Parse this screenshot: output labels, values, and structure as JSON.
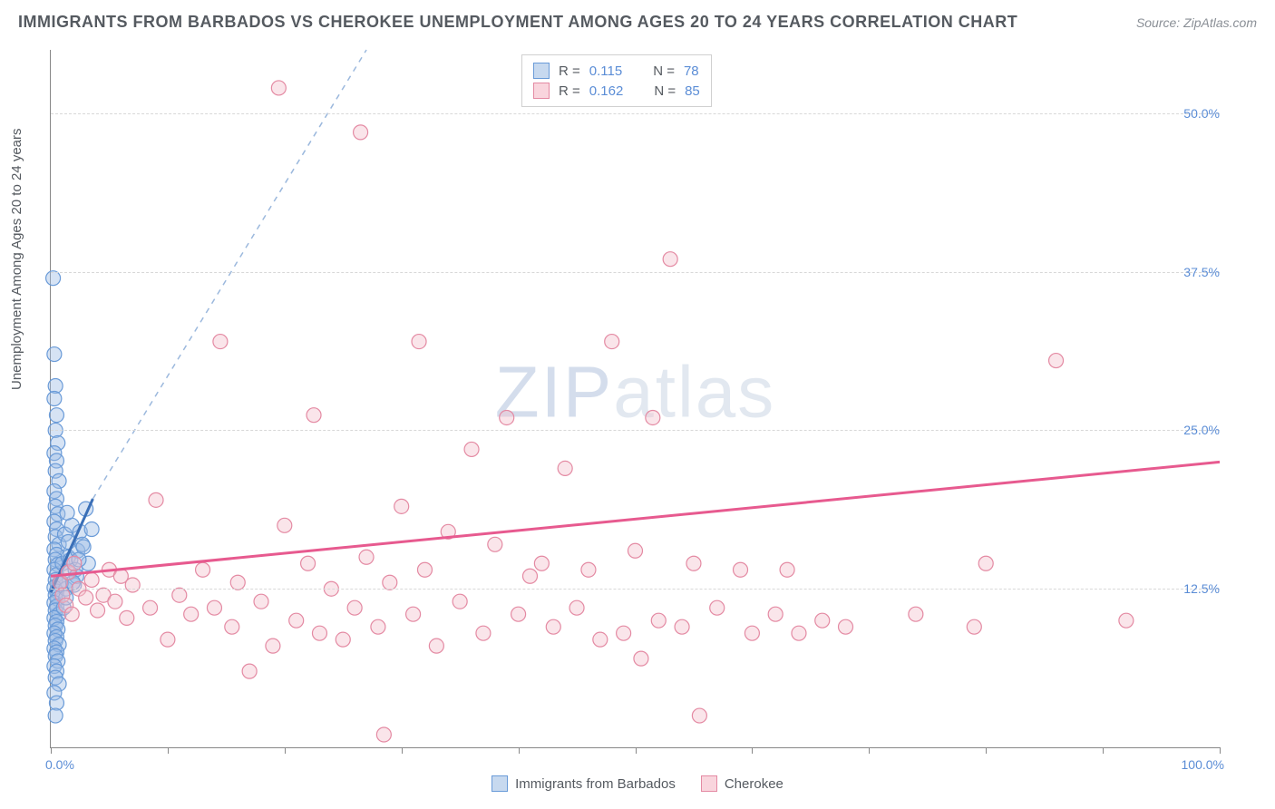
{
  "title": "IMMIGRANTS FROM BARBADOS VS CHEROKEE UNEMPLOYMENT AMONG AGES 20 TO 24 YEARS CORRELATION CHART",
  "source": "Source: ZipAtlas.com",
  "y_axis_label": "Unemployment Among Ages 20 to 24 years",
  "watermark_a": "ZIP",
  "watermark_b": "atlas",
  "chart": {
    "type": "scatter",
    "xlim": [
      0,
      100
    ],
    "ylim": [
      0,
      55
    ],
    "x_ticks_minor": [
      0,
      10,
      20,
      30,
      40,
      50,
      60,
      70,
      80,
      90,
      100
    ],
    "y_gridlines": [
      12.5,
      25.0,
      37.5,
      50.0
    ],
    "y_tick_labels": [
      "12.5%",
      "25.0%",
      "37.5%",
      "50.0%"
    ],
    "x_tick_labels": {
      "left": "0.0%",
      "right": "100.0%"
    },
    "background_color": "#ffffff",
    "grid_color": "#d8d8d8",
    "axis_color": "#888888",
    "tick_label_color": "#5b8dd6",
    "marker_radius": 8,
    "marker_opacity": 0.42,
    "series": [
      {
        "key": "blue",
        "label": "Immigrants from Barbados",
        "fill_color": "#9dbde4",
        "stroke_color": "#6a9bd8",
        "trend_color": "#3a6fb7",
        "trend_dashed_color": "#9bb8dd",
        "R": "0.115",
        "N": "78",
        "trend_solid": {
          "x1": 0,
          "y1": 12.2,
          "x2": 3.6,
          "y2": 19.6
        },
        "trend_dashed": {
          "x1": 3.6,
          "y1": 19.6,
          "x2": 27.0,
          "y2": 55.0
        },
        "points": [
          [
            0.2,
            37.0
          ],
          [
            0.3,
            31.0
          ],
          [
            0.4,
            28.5
          ],
          [
            0.3,
            27.5
          ],
          [
            0.5,
            26.2
          ],
          [
            0.4,
            25.0
          ],
          [
            0.6,
            24.0
          ],
          [
            0.3,
            23.2
          ],
          [
            0.5,
            22.6
          ],
          [
            0.4,
            21.8
          ],
          [
            0.7,
            21.0
          ],
          [
            0.3,
            20.2
          ],
          [
            0.5,
            19.6
          ],
          [
            0.4,
            19.0
          ],
          [
            0.6,
            18.4
          ],
          [
            0.3,
            17.8
          ],
          [
            0.5,
            17.2
          ],
          [
            0.4,
            16.6
          ],
          [
            0.7,
            16.0
          ],
          [
            0.3,
            15.6
          ],
          [
            0.5,
            15.2
          ],
          [
            0.4,
            14.8
          ],
          [
            0.6,
            14.4
          ],
          [
            0.3,
            14.0
          ],
          [
            0.5,
            13.6
          ],
          [
            0.4,
            13.2
          ],
          [
            0.7,
            12.9
          ],
          [
            0.3,
            12.6
          ],
          [
            0.5,
            12.3
          ],
          [
            0.4,
            12.0
          ],
          [
            0.6,
            11.7
          ],
          [
            0.3,
            11.4
          ],
          [
            0.5,
            11.1
          ],
          [
            0.4,
            10.8
          ],
          [
            0.7,
            10.5
          ],
          [
            0.3,
            10.2
          ],
          [
            0.5,
            9.9
          ],
          [
            0.4,
            9.6
          ],
          [
            0.6,
            9.3
          ],
          [
            0.3,
            9.0
          ],
          [
            0.5,
            8.7
          ],
          [
            0.4,
            8.4
          ],
          [
            0.7,
            8.1
          ],
          [
            0.3,
            7.8
          ],
          [
            0.5,
            7.5
          ],
          [
            0.4,
            7.2
          ],
          [
            0.6,
            6.8
          ],
          [
            0.3,
            6.4
          ],
          [
            0.5,
            6.0
          ],
          [
            0.4,
            5.5
          ],
          [
            0.7,
            5.0
          ],
          [
            0.3,
            4.3
          ],
          [
            0.5,
            3.5
          ],
          [
            0.4,
            2.5
          ],
          [
            1.0,
            14.5
          ],
          [
            1.2,
            16.8
          ],
          [
            1.3,
            12.5
          ],
          [
            1.5,
            15.0
          ],
          [
            1.6,
            13.8
          ],
          [
            1.8,
            17.5
          ],
          [
            1.1,
            11.0
          ],
          [
            1.4,
            18.5
          ],
          [
            0.9,
            13.0
          ],
          [
            1.7,
            14.8
          ],
          [
            1.3,
            11.8
          ],
          [
            1.5,
            16.2
          ],
          [
            2.1,
            14.0
          ],
          [
            2.3,
            15.5
          ],
          [
            2.0,
            12.8
          ],
          [
            2.5,
            17.0
          ],
          [
            2.2,
            13.5
          ],
          [
            2.7,
            16.0
          ],
          [
            3.0,
            18.8
          ],
          [
            3.2,
            14.5
          ],
          [
            2.8,
            15.8
          ],
          [
            3.5,
            17.2
          ],
          [
            1.9,
            13.0
          ],
          [
            2.4,
            14.8
          ]
        ]
      },
      {
        "key": "pink",
        "label": "Cherokee",
        "fill_color": "#f4c2cd",
        "stroke_color": "#e48aa3",
        "trend_color": "#e75a8f",
        "R": "0.162",
        "N": "85",
        "trend_solid": {
          "x1": 0,
          "y1": 13.5,
          "x2": 100,
          "y2": 22.5
        },
        "points": [
          [
            0.8,
            13.0
          ],
          [
            1.0,
            12.0
          ],
          [
            1.3,
            11.2
          ],
          [
            1.5,
            13.8
          ],
          [
            1.8,
            10.5
          ],
          [
            2.0,
            14.5
          ],
          [
            2.4,
            12.5
          ],
          [
            3.0,
            11.8
          ],
          [
            3.5,
            13.2
          ],
          [
            4.0,
            10.8
          ],
          [
            4.5,
            12.0
          ],
          [
            5.0,
            14.0
          ],
          [
            5.5,
            11.5
          ],
          [
            6.0,
            13.5
          ],
          [
            6.5,
            10.2
          ],
          [
            7.0,
            12.8
          ],
          [
            8.5,
            11.0
          ],
          [
            9.0,
            19.5
          ],
          [
            10.0,
            8.5
          ],
          [
            11.0,
            12.0
          ],
          [
            12.0,
            10.5
          ],
          [
            13.0,
            14.0
          ],
          [
            14.0,
            11.0
          ],
          [
            14.5,
            32.0
          ],
          [
            15.5,
            9.5
          ],
          [
            16.0,
            13.0
          ],
          [
            17.0,
            6.0
          ],
          [
            18.0,
            11.5
          ],
          [
            19.0,
            8.0
          ],
          [
            19.5,
            52.0
          ],
          [
            20.0,
            17.5
          ],
          [
            21.0,
            10.0
          ],
          [
            22.0,
            14.5
          ],
          [
            22.5,
            26.2
          ],
          [
            23.0,
            9.0
          ],
          [
            24.0,
            12.5
          ],
          [
            25.0,
            8.5
          ],
          [
            26.0,
            11.0
          ],
          [
            26.5,
            48.5
          ],
          [
            27.0,
            15.0
          ],
          [
            28.0,
            9.5
          ],
          [
            28.5,
            1.0
          ],
          [
            29.0,
            13.0
          ],
          [
            30.0,
            19.0
          ],
          [
            31.0,
            10.5
          ],
          [
            31.5,
            32.0
          ],
          [
            32.0,
            14.0
          ],
          [
            33.0,
            8.0
          ],
          [
            34.0,
            17.0
          ],
          [
            35.0,
            11.5
          ],
          [
            36.0,
            23.5
          ],
          [
            37.0,
            9.0
          ],
          [
            38.0,
            16.0
          ],
          [
            39.0,
            26.0
          ],
          [
            40.0,
            10.5
          ],
          [
            41.0,
            13.5
          ],
          [
            42.0,
            14.5
          ],
          [
            43.0,
            9.5
          ],
          [
            44.0,
            22.0
          ],
          [
            45.0,
            11.0
          ],
          [
            46.0,
            14.0
          ],
          [
            47.0,
            8.5
          ],
          [
            48.0,
            32.0
          ],
          [
            49.0,
            9.0
          ],
          [
            50.0,
            15.5
          ],
          [
            50.5,
            7.0
          ],
          [
            51.5,
            26.0
          ],
          [
            52.0,
            10.0
          ],
          [
            53.0,
            38.5
          ],
          [
            54.0,
            9.5
          ],
          [
            55.0,
            14.5
          ],
          [
            55.5,
            2.5
          ],
          [
            57.0,
            11.0
          ],
          [
            59.0,
            14.0
          ],
          [
            60.0,
            9.0
          ],
          [
            62.0,
            10.5
          ],
          [
            63.0,
            14.0
          ],
          [
            64.0,
            9.0
          ],
          [
            66.0,
            10.0
          ],
          [
            68.0,
            9.5
          ],
          [
            74.0,
            10.5
          ],
          [
            80.0,
            14.5
          ],
          [
            79.0,
            9.5
          ],
          [
            86.0,
            30.5
          ],
          [
            92.0,
            10.0
          ]
        ]
      }
    ]
  },
  "legend_top": {
    "r_label": "R =",
    "n_label": "N ="
  }
}
